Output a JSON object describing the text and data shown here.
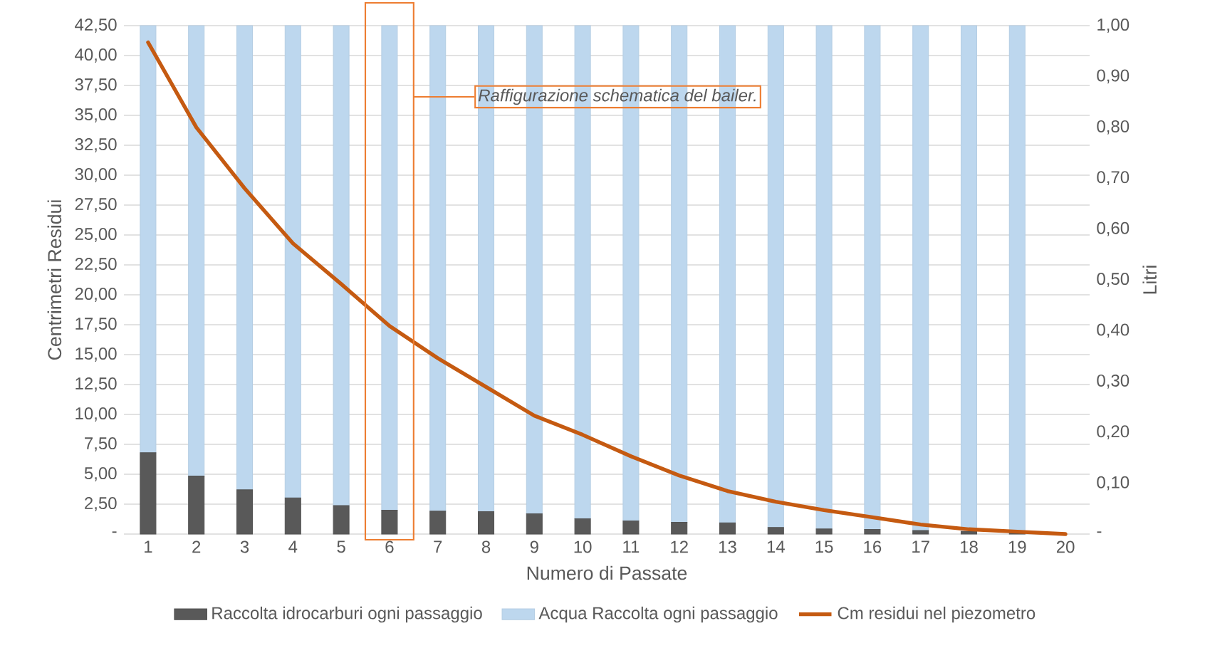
{
  "chart_data": {
    "type": "bar",
    "stacked": true,
    "xlabel": "Numero di Passate",
    "ylabel": "Centrimetri Residui",
    "y2label": "Litri",
    "categories": [
      "1",
      "2",
      "3",
      "4",
      "5",
      "6",
      "7",
      "8",
      "9",
      "10",
      "11",
      "12",
      "13",
      "14",
      "15",
      "16",
      "17",
      "18",
      "19",
      "20"
    ],
    "series": [
      {
        "name": "Raccolta idrocarburi ogni passaggio",
        "color": "#595959",
        "axis": "y2",
        "values": [
          0.16,
          0.114,
          0.087,
          0.071,
          0.056,
          0.047,
          0.045,
          0.044,
          0.04,
          0.03,
          0.026,
          0.023,
          0.022,
          0.013,
          0.01,
          0.009,
          0.007,
          0.005,
          0.002,
          null
        ]
      },
      {
        "name": "Acqua Raccolta ogni passaggio",
        "color": "#bdd7ee",
        "axis": "y2",
        "values": [
          0.84,
          0.886,
          0.913,
          0.929,
          0.944,
          0.953,
          0.955,
          0.956,
          0.96,
          0.97,
          0.974,
          0.977,
          0.978,
          0.987,
          0.99,
          0.991,
          0.993,
          0.995,
          0.998,
          null
        ]
      },
      {
        "name": "Cm residui nel piezometro",
        "type": "line",
        "color": "#c55a11",
        "axis": "y",
        "values": [
          41.1,
          34.0,
          28.9,
          24.3,
          20.9,
          17.4,
          14.7,
          12.3,
          9.9,
          8.3,
          6.5,
          4.9,
          3.6,
          2.7,
          2.0,
          1.4,
          0.8,
          0.4,
          0.2,
          0
        ]
      }
    ],
    "ylim": [
      0,
      42.5
    ],
    "yticks": [
      {
        "value": 0,
        "label": "-"
      },
      {
        "value": 2.5,
        "label": "2,50"
      },
      {
        "value": 5,
        "label": "5,00"
      },
      {
        "value": 7.5,
        "label": "7,50"
      },
      {
        "value": 10,
        "label": "10,00"
      },
      {
        "value": 12.5,
        "label": "12,50"
      },
      {
        "value": 15,
        "label": "15,00"
      },
      {
        "value": 17.5,
        "label": "17,50"
      },
      {
        "value": 20,
        "label": "20,00"
      },
      {
        "value": 22.5,
        "label": "22,50"
      },
      {
        "value": 25,
        "label": "25,00"
      },
      {
        "value": 27.5,
        "label": "27,50"
      },
      {
        "value": 30,
        "label": "30,00"
      },
      {
        "value": 32.5,
        "label": "32,50"
      },
      {
        "value": 35,
        "label": "35,00"
      },
      {
        "value": 37.5,
        "label": "37,50"
      },
      {
        "value": 40,
        "label": "40,00"
      },
      {
        "value": 42.5,
        "label": "42,50"
      }
    ],
    "y2lim": [
      0,
      1
    ],
    "y2ticks": [
      {
        "value": 0,
        "label": "-"
      },
      {
        "value": 0.1,
        "label": "0,10"
      },
      {
        "value": 0.2,
        "label": "0,20"
      },
      {
        "value": 0.3,
        "label": "0,30"
      },
      {
        "value": 0.4,
        "label": "0,40"
      },
      {
        "value": 0.5,
        "label": "0,50"
      },
      {
        "value": 0.6,
        "label": "0,60"
      },
      {
        "value": 0.7,
        "label": "0,70"
      },
      {
        "value": 0.8,
        "label": "0,80"
      },
      {
        "value": 0.9,
        "label": "0,90"
      },
      {
        "value": 1.0,
        "label": "1,00"
      }
    ],
    "grid": "y",
    "legend": "bottom",
    "annotations": [
      "Raffigurazione schematica del bailer."
    ]
  }
}
